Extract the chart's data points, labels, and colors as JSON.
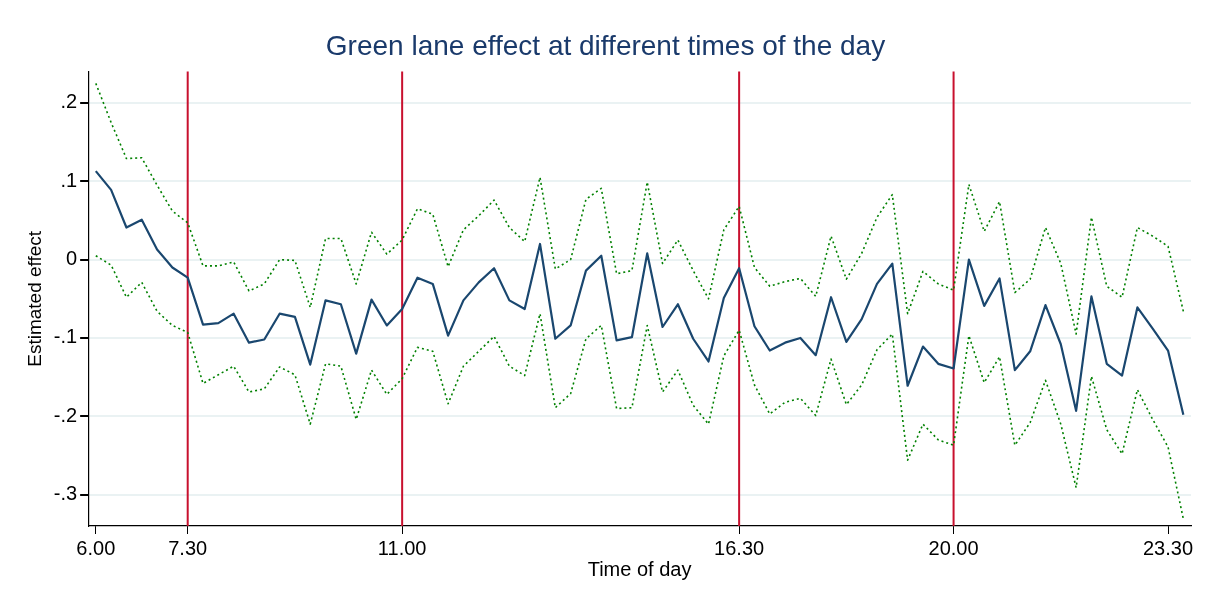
{
  "chart_data": {
    "type": "line",
    "title": "Green lane effect at different times of the day",
    "xlabel": "Time of day",
    "ylabel": "Estimated effect",
    "categories": [
      "6.00",
      null,
      null,
      null,
      null,
      null,
      "7.30",
      null,
      null,
      null,
      null,
      null,
      null,
      null,
      null,
      null,
      null,
      null,
      null,
      null,
      "11.00",
      null,
      null,
      null,
      null,
      null,
      null,
      null,
      null,
      null,
      null,
      null,
      null,
      null,
      null,
      null,
      null,
      null,
      null,
      null,
      null,
      null,
      "16.30",
      null,
      null,
      null,
      null,
      null,
      null,
      null,
      null,
      null,
      null,
      null,
      null,
      null,
      "20.00",
      null,
      null,
      null,
      null,
      null,
      null,
      null,
      null,
      null,
      null,
      null,
      null,
      null,
      "23.30",
      null
    ],
    "series": [
      {
        "color": "#008000",
        "line_style": "dotted",
        "values": [
          0.225,
          0.175,
          0.129,
          0.13,
          0.095,
          0.062,
          0.047,
          -0.008,
          -0.008,
          -0.003,
          -0.04,
          -0.031,
          0,
          -0.001,
          -0.061,
          0.027,
          0.027,
          -0.031,
          0.035,
          0.007,
          0.025,
          0.065,
          0.058,
          -0.009,
          0.038,
          0.056,
          0.076,
          0.041,
          0.023,
          0.105,
          -0.012,
          0,
          0.077,
          0.091,
          -0.018,
          -0.014,
          0.099,
          -0.005,
          0.025,
          -0.014,
          -0.05,
          0.038,
          0.068,
          -0.01,
          -0.034,
          -0.028,
          -0.024,
          -0.047,
          0.03,
          -0.025,
          0.008,
          0.054,
          0.083,
          -0.069,
          -0.015,
          -0.031,
          -0.039,
          0.096,
          0.036,
          0.074,
          -0.042,
          -0.025,
          0.041,
          -0.005,
          -0.095,
          0.054,
          -0.034,
          -0.048,
          0.041,
          0.03,
          0.017,
          -0.066
        ]
      },
      {
        "color": "#008000",
        "line_style": "dotted",
        "values": [
          0.005,
          -0.007,
          -0.048,
          -0.029,
          -0.066,
          -0.084,
          -0.093,
          -0.158,
          -0.147,
          -0.136,
          -0.169,
          -0.165,
          -0.137,
          -0.147,
          -0.21,
          -0.133,
          -0.136,
          -0.204,
          -0.141,
          -0.172,
          -0.152,
          -0.112,
          -0.117,
          -0.184,
          -0.136,
          -0.117,
          -0.098,
          -0.136,
          -0.148,
          -0.069,
          -0.189,
          -0.171,
          -0.101,
          -0.084,
          -0.19,
          -0.189,
          -0.084,
          -0.169,
          -0.141,
          -0.186,
          -0.21,
          -0.123,
          -0.09,
          -0.16,
          -0.197,
          -0.182,
          -0.177,
          -0.199,
          -0.127,
          -0.185,
          -0.16,
          -0.115,
          -0.095,
          -0.256,
          -0.21,
          -0.23,
          -0.237,
          -0.097,
          -0.157,
          -0.124,
          -0.237,
          -0.208,
          -0.154,
          -0.21,
          -0.291,
          -0.149,
          -0.217,
          -0.248,
          -0.166,
          -0.204,
          -0.239,
          -0.331
        ]
      },
      {
        "color": "#1a476f",
        "line_style": "solid",
        "values": [
          0.113,
          0.089,
          0.041,
          0.051,
          0.013,
          -0.01,
          -0.023,
          -0.083,
          -0.081,
          -0.069,
          -0.106,
          -0.102,
          -0.069,
          -0.073,
          -0.134,
          -0.052,
          -0.057,
          -0.12,
          -0.051,
          -0.084,
          -0.063,
          -0.023,
          -0.031,
          -0.097,
          -0.052,
          -0.029,
          -0.011,
          -0.052,
          -0.063,
          0.02,
          -0.101,
          -0.084,
          -0.014,
          0.005,
          -0.103,
          -0.099,
          0.008,
          -0.086,
          -0.057,
          -0.101,
          -0.13,
          -0.049,
          -0.011,
          -0.085,
          -0.116,
          -0.106,
          -0.1,
          -0.122,
          -0.048,
          -0.105,
          -0.076,
          -0.031,
          -0.005,
          -0.161,
          -0.111,
          -0.133,
          -0.139,
          0,
          -0.059,
          -0.024,
          -0.141,
          -0.117,
          -0.058,
          -0.108,
          -0.193,
          -0.047,
          -0.133,
          -0.148,
          -0.061,
          -0.088,
          -0.116,
          -0.198
        ]
      }
    ],
    "ylim": [
      -0.34,
      0.24
    ],
    "yticks": [
      {
        "value": -0.3,
        "label": "-.3"
      },
      {
        "value": -0.2,
        "label": "-.2"
      },
      {
        "value": -0.1,
        "label": "-.1"
      },
      {
        "value": 0,
        "label": "0"
      },
      {
        "value": 0.1,
        "label": ".1"
      },
      {
        "value": 0.2,
        "label": ".2"
      }
    ],
    "ref_lines": [
      {
        "axis": "x",
        "value": "7.30",
        "color": "#c8102e"
      },
      {
        "axis": "x",
        "value": "11.00",
        "color": "#c8102e"
      },
      {
        "axis": "x",
        "value": "16.30",
        "color": "#c8102e"
      },
      {
        "axis": "x",
        "value": "20.00",
        "color": "#c8102e"
      }
    ],
    "grid": "y",
    "marker": "none",
    "legend": false
  }
}
